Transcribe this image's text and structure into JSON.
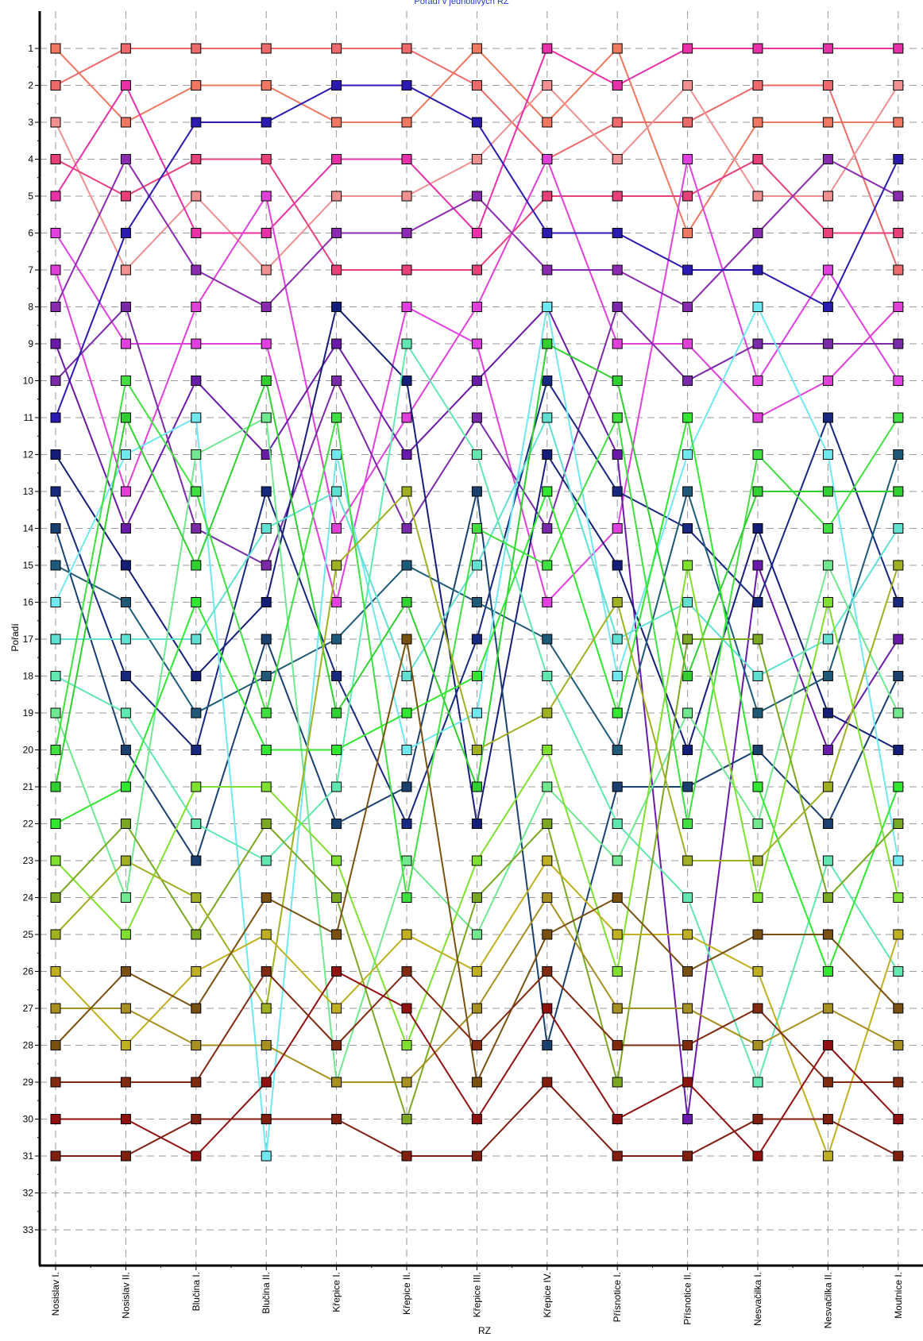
{
  "chart_data": {
    "type": "line",
    "title": "Pořadí v jednotlivých RZ",
    "xlabel": "RZ",
    "ylabel": "Pořadí",
    "y_inverted": true,
    "ylim": [
      1,
      33
    ],
    "yticks": [
      1,
      2,
      3,
      4,
      5,
      6,
      7,
      8,
      9,
      10,
      11,
      12,
      13,
      14,
      15,
      16,
      17,
      18,
      19,
      20,
      21,
      22,
      23,
      24,
      25,
      26,
      27,
      28,
      29,
      30,
      31,
      32,
      33
    ],
    "grid": true,
    "legend": "none",
    "categories": [
      "Nosislav I.",
      "Nosislav II.",
      "Blučina I.",
      "Blučina II.",
      "Křepice I.",
      "Křepice II.",
      "Křepice III.",
      "Křepice IV.",
      "Přísnotice I.",
      "Přísnotice II.",
      "Nesvačilka I.",
      "Nesvačilka II.",
      "Moutnice I."
    ],
    "series": [
      {
        "color": "#f07860",
        "values": [
          1,
          3,
          2,
          2,
          3,
          3,
          1,
          3,
          1,
          6,
          3,
          3,
          3
        ]
      },
      {
        "color": "#ee6a6a",
        "values": [
          2,
          1,
          1,
          1,
          1,
          1,
          2,
          4,
          3,
          3,
          2,
          2,
          7
        ]
      },
      {
        "color": "#f09090",
        "values": [
          3,
          7,
          5,
          7,
          5,
          5,
          4,
          2,
          4,
          2,
          5,
          5,
          2
        ]
      },
      {
        "color": "#e8407a",
        "values": [
          4,
          5,
          4,
          4,
          7,
          7,
          7,
          5,
          5,
          5,
          4,
          6,
          6
        ]
      },
      {
        "color": "#e830a8",
        "values": [
          5,
          2,
          6,
          6,
          4,
          4,
          6,
          1,
          2,
          1,
          1,
          1,
          1
        ]
      },
      {
        "color": "#e040e0",
        "values": [
          6,
          9,
          9,
          9,
          16,
          8,
          9,
          16,
          14,
          4,
          10,
          7,
          10
        ]
      },
      {
        "color": "#e040d8",
        "values": [
          7,
          13,
          8,
          5,
          14,
          11,
          8,
          4,
          9,
          9,
          11,
          10,
          8
        ]
      },
      {
        "color": "#8a2ab0",
        "values": [
          8,
          4,
          7,
          8,
          6,
          6,
          5,
          7,
          7,
          8,
          6,
          4,
          5
        ]
      },
      {
        "color": "#6a1aa8",
        "values": [
          9,
          14,
          10,
          12,
          9,
          12,
          10,
          8,
          12,
          30,
          15,
          20,
          17
        ]
      },
      {
        "color": "#7a2aa8",
        "values": [
          10,
          8,
          14,
          15,
          10,
          14,
          11,
          14,
          8,
          10,
          9,
          9,
          9
        ]
      },
      {
        "color": "#2a1ab0",
        "values": [
          11,
          6,
          3,
          3,
          2,
          2,
          3,
          6,
          6,
          7,
          7,
          8,
          4
        ]
      },
      {
        "color": "#141e78",
        "values": [
          12,
          15,
          18,
          16,
          8,
          10,
          22,
          12,
          15,
          20,
          14,
          19,
          20
        ]
      },
      {
        "color": "#18287e",
        "values": [
          13,
          18,
          20,
          13,
          18,
          22,
          17,
          10,
          13,
          14,
          16,
          11,
          16
        ]
      },
      {
        "color": "#1a4070",
        "values": [
          14,
          20,
          23,
          17,
          22,
          21,
          13,
          28,
          21,
          21,
          20,
          22,
          18
        ]
      },
      {
        "color": "#1e5a78",
        "values": [
          15,
          16,
          19,
          18,
          17,
          15,
          16,
          17,
          20,
          13,
          19,
          18,
          12
        ]
      },
      {
        "color": "#70e8f0",
        "values": [
          16,
          12,
          11,
          31,
          12,
          20,
          19,
          8,
          18,
          12,
          8,
          12,
          23
        ]
      },
      {
        "color": "#60e0d0",
        "values": [
          17,
          17,
          17,
          14,
          13,
          18,
          15,
          11,
          17,
          16,
          18,
          17,
          14
        ]
      },
      {
        "color": "#60e8b0",
        "values": [
          18,
          19,
          22,
          23,
          21,
          9,
          12,
          18,
          22,
          24,
          29,
          23,
          26
        ]
      },
      {
        "color": "#70e890",
        "values": [
          19,
          24,
          12,
          11,
          29,
          23,
          25,
          21,
          23,
          19,
          22,
          15,
          19
        ]
      },
      {
        "color": "#40e040",
        "values": [
          20,
          10,
          13,
          19,
          11,
          24,
          14,
          15,
          11,
          22,
          12,
          14,
          11
        ]
      },
      {
        "color": "#30d030",
        "values": [
          21,
          11,
          15,
          10,
          19,
          16,
          21,
          9,
          10,
          18,
          13,
          13,
          13
        ]
      },
      {
        "color": "#30e830",
        "values": [
          22,
          21,
          16,
          20,
          20,
          19,
          18,
          13,
          19,
          11,
          21,
          26,
          21
        ]
      },
      {
        "color": "#80e030",
        "values": [
          23,
          25,
          21,
          21,
          23,
          28,
          23,
          20,
          26,
          15,
          24,
          16,
          24
        ]
      },
      {
        "color": "#7aa820",
        "values": [
          24,
          22,
          25,
          22,
          24,
          30,
          24,
          22,
          29,
          17,
          17,
          24,
          22
        ]
      },
      {
        "color": "#a0b020",
        "values": [
          25,
          23,
          24,
          27,
          15,
          13,
          20,
          19,
          16,
          23,
          23,
          21,
          15
        ]
      },
      {
        "color": "#c0b020",
        "values": [
          26,
          28,
          26,
          25,
          27,
          25,
          26,
          23,
          25,
          25,
          26,
          31,
          25
        ]
      },
      {
        "color": "#a89020",
        "values": [
          27,
          27,
          28,
          28,
          29,
          29,
          27,
          24,
          27,
          27,
          28,
          27,
          28
        ]
      },
      {
        "color": "#7a5010",
        "values": [
          28,
          26,
          27,
          24,
          25,
          17,
          29,
          25,
          24,
          26,
          25,
          25,
          27
        ]
      },
      {
        "color": "#802a10",
        "values": [
          29,
          29,
          29,
          26,
          28,
          26,
          28,
          26,
          28,
          28,
          27,
          29,
          29
        ]
      },
      {
        "color": "#901010",
        "values": [
          30,
          30,
          31,
          29,
          26,
          27,
          30,
          27,
          30,
          29,
          31,
          28,
          30
        ]
      },
      {
        "color": "#801e10",
        "values": [
          31,
          31,
          30,
          30,
          30,
          31,
          31,
          29,
          31,
          31,
          30,
          30,
          31
        ]
      }
    ]
  }
}
